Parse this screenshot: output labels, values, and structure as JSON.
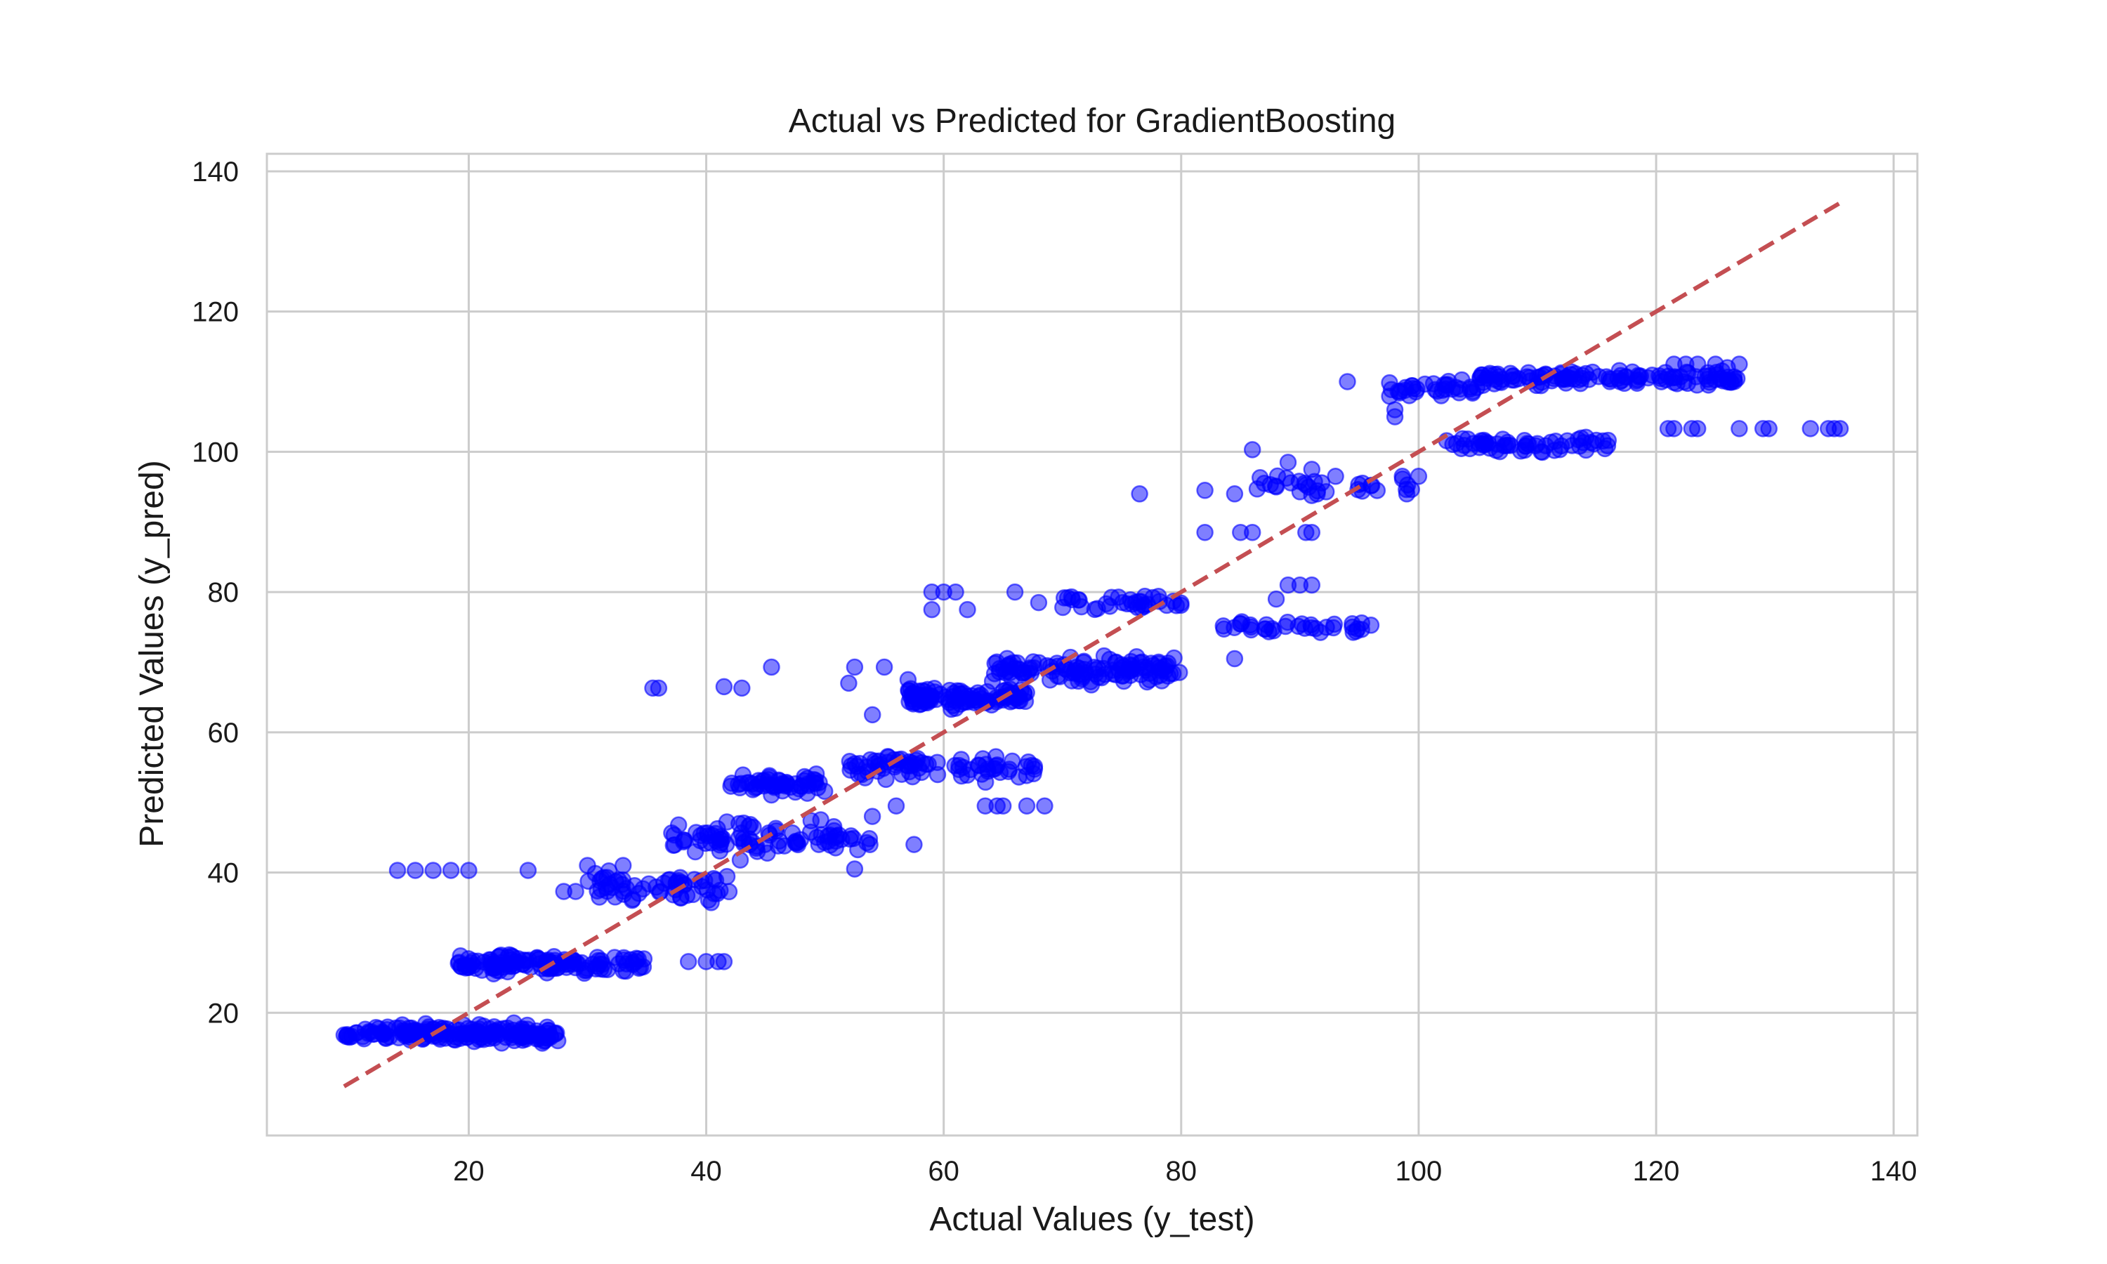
{
  "chart_data": {
    "type": "scatter",
    "title": "Actual vs Predicted for GradientBoosting",
    "xlabel": "Actual Values (y_test)",
    "ylabel": "Predicted Values (y_pred)",
    "xlim": [
      3,
      142
    ],
    "ylim": [
      2.5,
      142.5
    ],
    "xticks": [
      20,
      40,
      60,
      80,
      100,
      120,
      140
    ],
    "yticks": [
      20,
      40,
      60,
      80,
      100,
      120,
      140
    ],
    "xtick_labels": [
      "20",
      "40",
      "60",
      "80",
      "100",
      "120",
      "140"
    ],
    "ytick_labels": [
      "20",
      "40",
      "60",
      "80",
      "100",
      "120",
      "140"
    ],
    "grid": true,
    "colors": {
      "points": "#0000ff",
      "reference_line": "#c44e52",
      "grid": "#cccccc",
      "frame": "#cccccc"
    },
    "reference_line": {
      "style": "dashed",
      "x": [
        9.5,
        135.5
      ],
      "y": [
        9.5,
        135.5
      ]
    },
    "points_opacity": 0.5,
    "scatter_clusters": [
      {
        "x_range": [
          9.5,
          27.5
        ],
        "y_center": 17.0,
        "spread": 1.8,
        "count": 180
      },
      {
        "x_range": [
          19,
          35
        ],
        "y_center": 27.0,
        "spread": 1.8,
        "count": 130
      },
      {
        "x_range": [
          30,
          42
        ],
        "y_center": 38.0,
        "spread": 3.5,
        "count": 60
      },
      {
        "x_range": [
          37,
          54
        ],
        "y_center": 45.0,
        "spread": 3.5,
        "count": 90
      },
      {
        "x_range": [
          42,
          50
        ],
        "y_center": 52.5,
        "spread": 2.0,
        "count": 55
      },
      {
        "x_range": [
          52,
          68
        ],
        "y_center": 55.0,
        "spread": 2.5,
        "count": 80
      },
      {
        "x_range": [
          57,
          67
        ],
        "y_center": 65.0,
        "spread": 2.0,
        "count": 110
      },
      {
        "x_range": [
          64,
          80
        ],
        "y_center": 69.0,
        "spread": 2.5,
        "count": 120
      },
      {
        "x_range": [
          70,
          80
        ],
        "y_center": 78.5,
        "spread": 2.0,
        "count": 35
      },
      {
        "x_range": [
          83,
          96
        ],
        "y_center": 75.0,
        "spread": 1.2,
        "count": 35
      },
      {
        "x_range": [
          86,
          100
        ],
        "y_center": 95.0,
        "spread": 2.5,
        "count": 30
      },
      {
        "x_range": [
          97,
          105
        ],
        "y_center": 109.0,
        "spread": 1.5,
        "count": 35
      },
      {
        "x_range": [
          105,
          127
        ],
        "y_center": 110.5,
        "spread": 1.5,
        "count": 120
      },
      {
        "x_range": [
          102,
          116
        ],
        "y_center": 101.0,
        "spread": 1.5,
        "count": 60
      }
    ],
    "scatter_points": [
      [
        14,
        40.3
      ],
      [
        15.5,
        40.3
      ],
      [
        17,
        40.3
      ],
      [
        18.5,
        40.3
      ],
      [
        20,
        40.3
      ],
      [
        25,
        40.3
      ],
      [
        35.5,
        66.3
      ],
      [
        36,
        66.3
      ],
      [
        41.5,
        66.5
      ],
      [
        43,
        66.3
      ],
      [
        45.5,
        69.3
      ],
      [
        38.5,
        27.3
      ],
      [
        40,
        27.3
      ],
      [
        41,
        27.3
      ],
      [
        41.5,
        27.3
      ],
      [
        28,
        37.3
      ],
      [
        29,
        37.3
      ],
      [
        30,
        41.0
      ],
      [
        33,
        41.0
      ],
      [
        31,
        36.5
      ],
      [
        52.5,
        69.3
      ],
      [
        55,
        69.3
      ],
      [
        52,
        67.0
      ],
      [
        57,
        67.5
      ],
      [
        54,
        62.5
      ],
      [
        52.5,
        40.5
      ],
      [
        57.5,
        44.0
      ],
      [
        56,
        49.5
      ],
      [
        59,
        77.5
      ],
      [
        59,
        80.0
      ],
      [
        60,
        80.0
      ],
      [
        61,
        80.0
      ],
      [
        62,
        77.5
      ],
      [
        66,
        80.0
      ],
      [
        68,
        78.5
      ],
      [
        63.5,
        49.5
      ],
      [
        64.5,
        49.5
      ],
      [
        65,
        49.5
      ],
      [
        67,
        49.5
      ],
      [
        68.5,
        49.5
      ],
      [
        76.5,
        94.0
      ],
      [
        82,
        88.5
      ],
      [
        82,
        94.5
      ],
      [
        84.5,
        94.0
      ],
      [
        84.5,
        70.5
      ],
      [
        85,
        88.5
      ],
      [
        86,
        88.5
      ],
      [
        86,
        100.3
      ],
      [
        88,
        95.0
      ],
      [
        89,
        98.5
      ],
      [
        90,
        94.3
      ],
      [
        91,
        97.5
      ],
      [
        93,
        96.5
      ],
      [
        90.5,
        88.5
      ],
      [
        91,
        88.5
      ],
      [
        89,
        81.0
      ],
      [
        90,
        81.0
      ],
      [
        91,
        81.0
      ],
      [
        88,
        79.0
      ],
      [
        94,
        110.0
      ],
      [
        98,
        106.0
      ],
      [
        98,
        105.0
      ],
      [
        100,
        96.5
      ],
      [
        99,
        94.0
      ],
      [
        121,
        103.3
      ],
      [
        121.5,
        103.3
      ],
      [
        123,
        103.3
      ],
      [
        123.5,
        103.3
      ],
      [
        127,
        103.3
      ],
      [
        129,
        103.3
      ],
      [
        129.5,
        103.3
      ],
      [
        133,
        103.3
      ],
      [
        134.5,
        103.3
      ],
      [
        135,
        103.3
      ],
      [
        135.5,
        103.3
      ],
      [
        121.5,
        112.5
      ],
      [
        122.5,
        112.5
      ],
      [
        123.5,
        112.5
      ],
      [
        125,
        112.5
      ],
      [
        126,
        112.0
      ],
      [
        127,
        112.5
      ]
    ]
  }
}
